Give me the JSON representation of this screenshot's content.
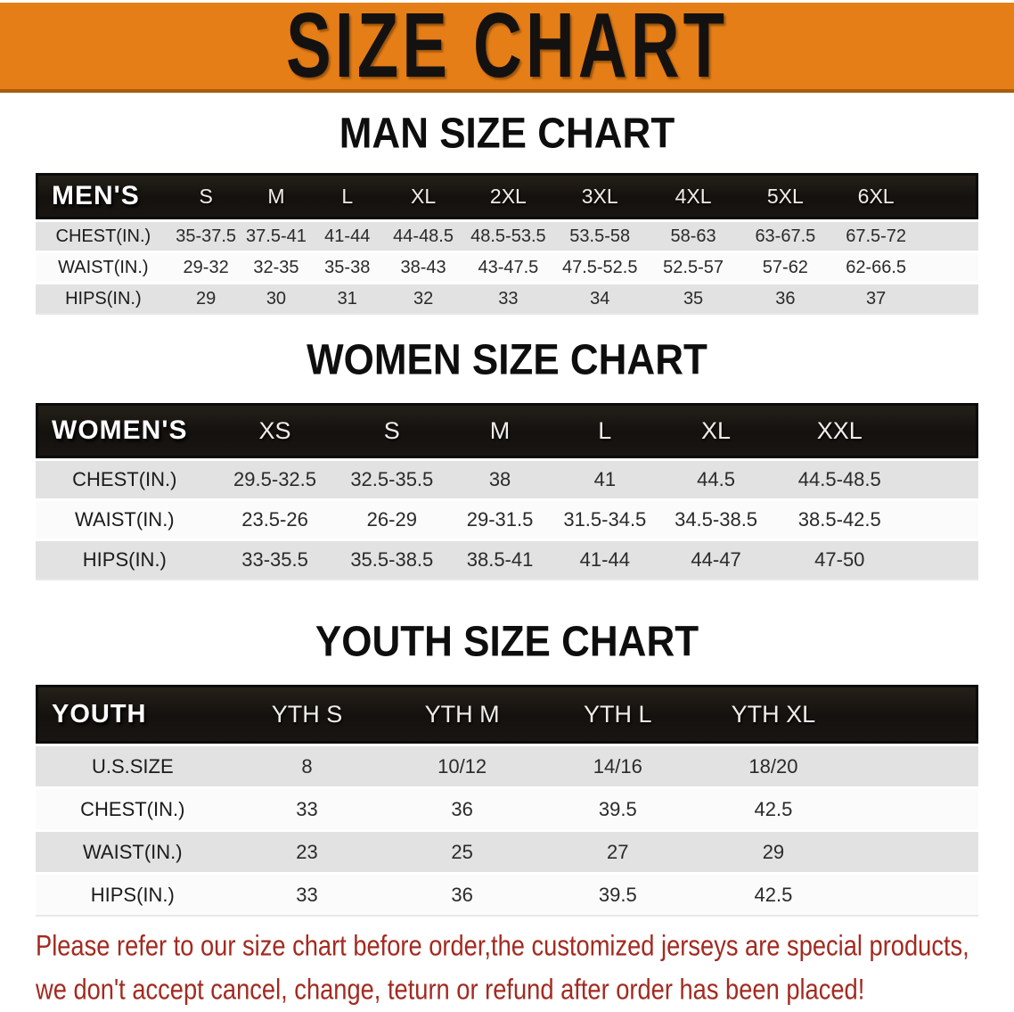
{
  "banner": {
    "title": "SIZE CHART"
  },
  "colors": {
    "banner_orange": "#e67e17",
    "banner_border": "#a85c0e",
    "header_black": "#14110e",
    "row_gray": "#e2e2e2",
    "row_white": "#fbfbfb",
    "disclaimer_red": "#a32a20"
  },
  "sections": [
    {
      "title": "MAN SIZE CHART",
      "table": {
        "header_label": "MEN'S",
        "columns": [
          "S",
          "M",
          "L",
          "XL",
          "2XL",
          "3XL",
          "4XL",
          "5XL",
          "6XL"
        ],
        "rows": [
          {
            "label": "CHEST(IN.)",
            "values": [
              "35-37.5",
              "37.5-41",
              "41-44",
              "44-48.5",
              "48.5-53.5",
              "53.5-58",
              "58-63",
              "63-67.5",
              "67.5-72"
            ]
          },
          {
            "label": "WAIST(IN.)",
            "values": [
              "29-32",
              "32-35",
              "35-38",
              "38-43",
              "43-47.5",
              "47.5-52.5",
              "52.5-57",
              "57-62",
              "62-66.5"
            ]
          },
          {
            "label": "HIPS(IN.)",
            "values": [
              "29",
              "30",
              "31",
              "32",
              "33",
              "34",
              "35",
              "36",
              "37"
            ]
          }
        ]
      }
    },
    {
      "title": "WOMEN SIZE CHART",
      "table": {
        "header_label": "WOMEN'S",
        "columns": [
          "XS",
          "S",
          "M",
          "L",
          "XL",
          "XXL"
        ],
        "rows": [
          {
            "label": "CHEST(IN.)",
            "values": [
              "29.5-32.5",
              "32.5-35.5",
              "38",
              "41",
              "44.5",
              "44.5-48.5"
            ]
          },
          {
            "label": "WAIST(IN.)",
            "values": [
              "23.5-26",
              "26-29",
              "29-31.5",
              "31.5-34.5",
              "34.5-38.5",
              "38.5-42.5"
            ]
          },
          {
            "label": "HIPS(IN.)",
            "values": [
              "33-35.5",
              "35.5-38.5",
              "38.5-41",
              "41-44",
              "44-47",
              "47-50"
            ]
          }
        ]
      }
    },
    {
      "title": "YOUTH SIZE CHART",
      "table": {
        "header_label": "YOUTH",
        "columns": [
          "YTH S",
          "YTH M",
          "YTH L",
          "YTH XL"
        ],
        "rows": [
          {
            "label": "U.S.SIZE",
            "values": [
              "8",
              "10/12",
              "14/16",
              "18/20"
            ]
          },
          {
            "label": "CHEST(IN.)",
            "values": [
              "33",
              "36",
              "39.5",
              "42.5"
            ]
          },
          {
            "label": "WAIST(IN.)",
            "values": [
              "23",
              "25",
              "27",
              "29"
            ]
          },
          {
            "label": "HIPS(IN.)",
            "values": [
              "33",
              "36",
              "39.5",
              "42.5"
            ]
          }
        ]
      }
    }
  ],
  "disclaimer": {
    "line1": "Please refer to our size chart before order,the customized jerseys are special products,",
    "line2": "we don't accept cancel, change, teturn or refund after order has been placed!"
  }
}
